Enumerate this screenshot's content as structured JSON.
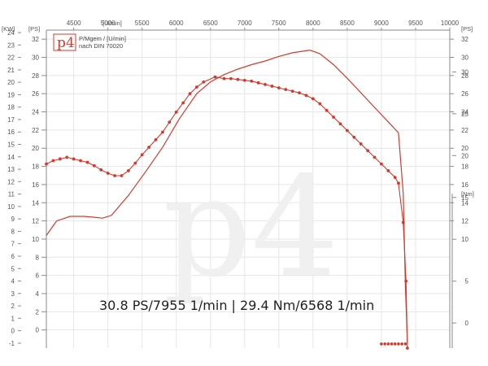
{
  "chart_data": {
    "type": "line",
    "x_unit": "[U/min]",
    "x_ticks": [
      4500,
      5000,
      5500,
      6000,
      6500,
      7000,
      7500,
      8000,
      8500,
      9000,
      9500,
      10000
    ],
    "xlim": [
      4100,
      10000
    ],
    "left_outer_axis": {
      "unit": "[KW]",
      "ticks": [
        -1,
        0,
        1,
        2,
        3,
        4,
        5,
        6,
        7,
        8,
        9,
        10,
        11,
        12,
        13,
        14,
        15,
        16,
        17,
        18,
        19,
        20,
        21,
        22,
        23,
        24
      ],
      "ylim": [
        -1.4,
        24.2
      ]
    },
    "left_inner_axis": {
      "unit": "[PS]",
      "ticks": [
        0,
        2,
        4,
        6,
        8,
        10,
        12,
        14,
        16,
        18,
        20,
        22,
        24,
        26,
        28,
        30,
        32
      ],
      "ylim": [
        -2,
        33
      ]
    },
    "right_upper_axis": {
      "unit": "[PS]",
      "ticks": [
        12,
        14,
        16,
        18,
        20,
        22,
        24,
        26,
        28,
        30,
        32
      ]
    },
    "right_lower_axis": {
      "unit": "[Nm]",
      "ticks": [
        0,
        5,
        10,
        15,
        20,
        25,
        30
      ],
      "ylim": [
        -3,
        35
      ]
    },
    "legend": {
      "logo": "p4",
      "line1": "P/Mgem / [U/min]",
      "line2": "nach DIN 70020"
    },
    "watermark": "p4",
    "annotation": "30.8 PS/7955 1/min | 29.4 Nm/6568 1/min",
    "series": [
      {
        "unit": "PS",
        "color": "#d43a2c",
        "x": [
          4100,
          4250,
          4450,
          4650,
          4800,
          4920,
          5050,
          5300,
          5550,
          5800,
          6050,
          6300,
          6500,
          6700,
          6900,
          7100,
          7300,
          7500,
          7700,
          7955,
          8100,
          8300,
          8500,
          8700,
          8900,
          9100,
          9250,
          9320,
          9350,
          9380
        ],
        "values": [
          10.4,
          12.0,
          12.5,
          12.5,
          12.4,
          12.3,
          12.6,
          14.8,
          17.4,
          20.1,
          23.3,
          26.0,
          27.3,
          28.1,
          28.7,
          29.2,
          29.6,
          30.1,
          30.5,
          30.8,
          30.4,
          29.2,
          27.7,
          26.1,
          24.5,
          22.9,
          21.7,
          15.0,
          5.0,
          -1.5
        ]
      },
      {
        "unit": "Nm",
        "color": "#d43a2c",
        "x": [
          4100,
          4200,
          4300,
          4400,
          4500,
          4600,
          4700,
          4800,
          4900,
          5000,
          5100,
          5200,
          5300,
          5400,
          5500,
          5600,
          5700,
          5800,
          5900,
          6000,
          6100,
          6200,
          6300,
          6400,
          6568,
          6700,
          6800,
          6900,
          7000,
          7100,
          7200,
          7300,
          7400,
          7500,
          7600,
          7700,
          7800,
          7900,
          8000,
          8100,
          8200,
          8300,
          8400,
          8500,
          8600,
          8700,
          8800,
          8900,
          9000,
          9100,
          9200,
          9250,
          9320,
          9360,
          9380
        ],
        "values": [
          19.0,
          19.4,
          19.6,
          19.8,
          19.6,
          19.4,
          19.2,
          18.8,
          18.3,
          17.9,
          17.6,
          17.6,
          18.2,
          19.1,
          20.1,
          21.0,
          21.9,
          22.8,
          24.0,
          25.2,
          26.3,
          27.4,
          28.2,
          28.8,
          29.4,
          29.2,
          29.2,
          29.1,
          29.0,
          28.9,
          28.7,
          28.5,
          28.3,
          28.1,
          27.9,
          27.7,
          27.5,
          27.2,
          26.8,
          26.2,
          25.4,
          24.6,
          23.8,
          23.0,
          22.2,
          21.4,
          20.6,
          19.8,
          19.0,
          18.2,
          17.4,
          16.7,
          12.0,
          5.0,
          -3.0
        ]
      }
    ],
    "baseline_dots": {
      "x": [
        9000,
        9050,
        9100,
        9150,
        9200,
        9250,
        9300,
        9350
      ],
      "value": -2.5
    }
  }
}
